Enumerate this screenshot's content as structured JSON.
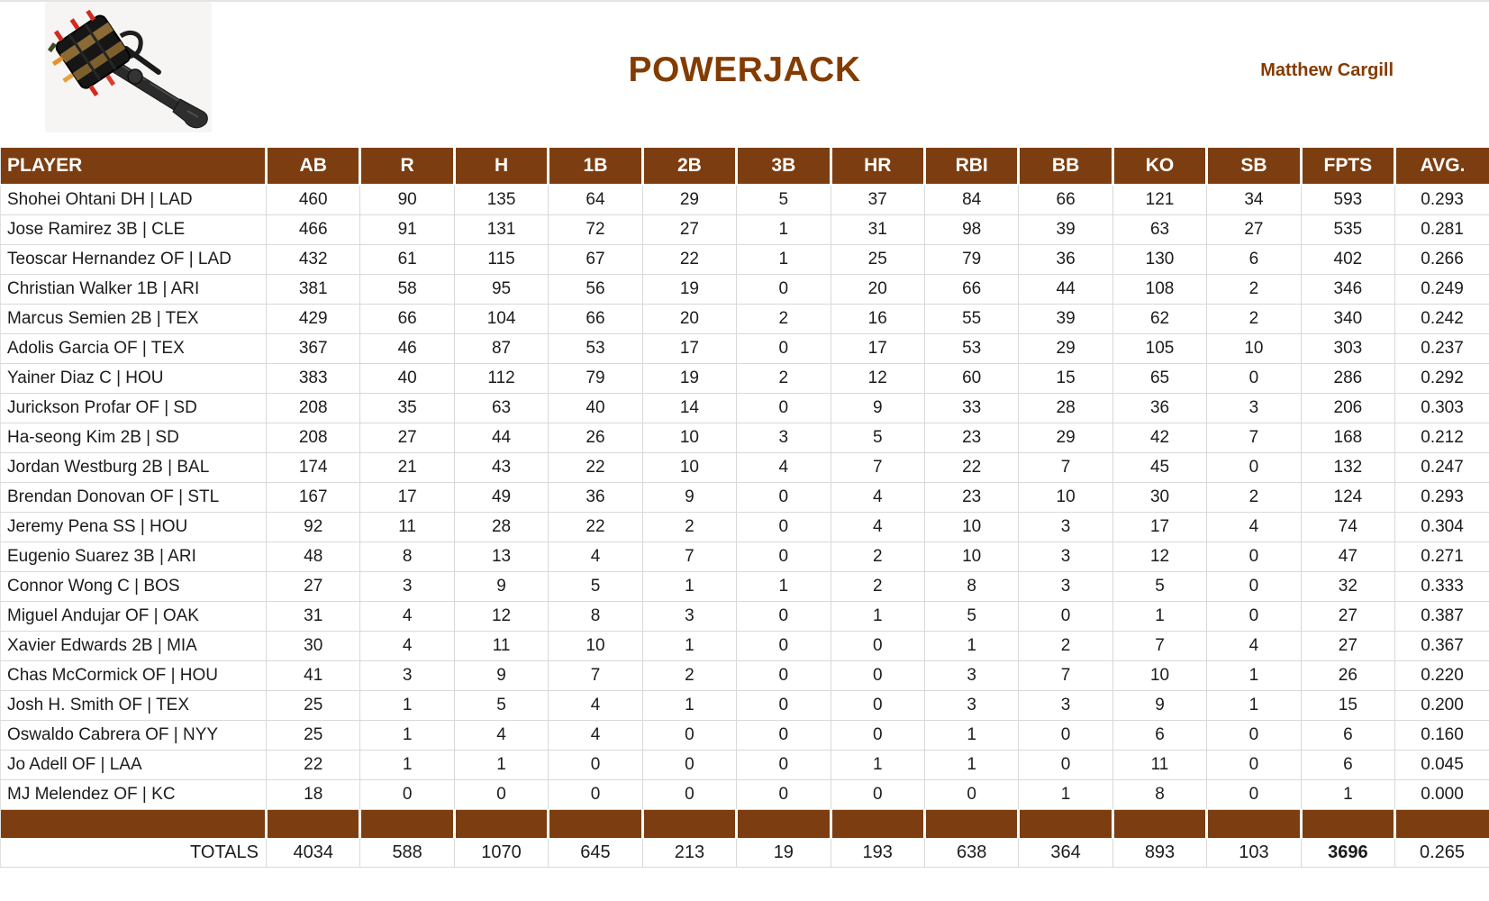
{
  "header": {
    "title": "POWERJACK",
    "owner": "Matthew Cargill",
    "logo_icon": "powerjack-hammer-icon"
  },
  "colors": {
    "accent_brown_fill": "#7C3E10",
    "title_brown_text": "#833C00",
    "gridline_gray": "#D9D9D9",
    "header_text": "#FFFFFF",
    "body_text": "#1C1C1C"
  },
  "table": {
    "columns": [
      "PLAYER",
      "AB",
      "R",
      "H",
      "1B",
      "2B",
      "3B",
      "HR",
      "RBI",
      "BB",
      "KO",
      "SB",
      "FPTS",
      "AVG."
    ],
    "rows": [
      {
        "player": "Shohei Ohtani DH | LAD",
        "stats": [
          "460",
          "90",
          "135",
          "64",
          "29",
          "5",
          "37",
          "84",
          "66",
          "121",
          "34",
          "593",
          "0.293"
        ]
      },
      {
        "player": "Jose Ramirez 3B | CLE",
        "stats": [
          "466",
          "91",
          "131",
          "72",
          "27",
          "1",
          "31",
          "98",
          "39",
          "63",
          "27",
          "535",
          "0.281"
        ]
      },
      {
        "player": "Teoscar Hernandez OF | LAD",
        "stats": [
          "432",
          "61",
          "115",
          "67",
          "22",
          "1",
          "25",
          "79",
          "36",
          "130",
          "6",
          "402",
          "0.266"
        ]
      },
      {
        "player": "Christian Walker 1B | ARI",
        "stats": [
          "381",
          "58",
          "95",
          "56",
          "19",
          "0",
          "20",
          "66",
          "44",
          "108",
          "2",
          "346",
          "0.249"
        ]
      },
      {
        "player": "Marcus Semien 2B | TEX",
        "stats": [
          "429",
          "66",
          "104",
          "66",
          "20",
          "2",
          "16",
          "55",
          "39",
          "62",
          "2",
          "340",
          "0.242"
        ]
      },
      {
        "player": "Adolis Garcia OF | TEX",
        "stats": [
          "367",
          "46",
          "87",
          "53",
          "17",
          "0",
          "17",
          "53",
          "29",
          "105",
          "10",
          "303",
          "0.237"
        ]
      },
      {
        "player": "Yainer Diaz C | HOU",
        "stats": [
          "383",
          "40",
          "112",
          "79",
          "19",
          "2",
          "12",
          "60",
          "15",
          "65",
          "0",
          "286",
          "0.292"
        ]
      },
      {
        "player": "Jurickson Profar OF | SD",
        "stats": [
          "208",
          "35",
          "63",
          "40",
          "14",
          "0",
          "9",
          "33",
          "28",
          "36",
          "3",
          "206",
          "0.303"
        ]
      },
      {
        "player": "Ha-seong Kim 2B | SD",
        "stats": [
          "208",
          "27",
          "44",
          "26",
          "10",
          "3",
          "5",
          "23",
          "29",
          "42",
          "7",
          "168",
          "0.212"
        ]
      },
      {
        "player": "Jordan Westburg 2B | BAL",
        "stats": [
          "174",
          "21",
          "43",
          "22",
          "10",
          "4",
          "7",
          "22",
          "7",
          "45",
          "0",
          "132",
          "0.247"
        ]
      },
      {
        "player": "Brendan Donovan OF | STL",
        "stats": [
          "167",
          "17",
          "49",
          "36",
          "9",
          "0",
          "4",
          "23",
          "10",
          "30",
          "2",
          "124",
          "0.293"
        ]
      },
      {
        "player": "Jeremy Pena SS | HOU",
        "stats": [
          "92",
          "11",
          "28",
          "22",
          "2",
          "0",
          "4",
          "10",
          "3",
          "17",
          "4",
          "74",
          "0.304"
        ]
      },
      {
        "player": "Eugenio Suarez 3B | ARI",
        "stats": [
          "48",
          "8",
          "13",
          "4",
          "7",
          "0",
          "2",
          "10",
          "3",
          "12",
          "0",
          "47",
          "0.271"
        ]
      },
      {
        "player": "Connor Wong C | BOS",
        "stats": [
          "27",
          "3",
          "9",
          "5",
          "1",
          "1",
          "2",
          "8",
          "3",
          "5",
          "0",
          "32",
          "0.333"
        ]
      },
      {
        "player": "Miguel Andujar OF | OAK",
        "stats": [
          "31",
          "4",
          "12",
          "8",
          "3",
          "0",
          "1",
          "5",
          "0",
          "1",
          "0",
          "27",
          "0.387"
        ]
      },
      {
        "player": "Xavier Edwards 2B | MIA",
        "stats": [
          "30",
          "4",
          "11",
          "10",
          "1",
          "0",
          "0",
          "1",
          "2",
          "7",
          "4",
          "27",
          "0.367"
        ]
      },
      {
        "player": "Chas McCormick OF | HOU",
        "stats": [
          "41",
          "3",
          "9",
          "7",
          "2",
          "0",
          "0",
          "3",
          "7",
          "10",
          "1",
          "26",
          "0.220"
        ]
      },
      {
        "player": "Josh H. Smith OF | TEX",
        "stats": [
          "25",
          "1",
          "5",
          "4",
          "1",
          "0",
          "0",
          "3",
          "3",
          "9",
          "1",
          "15",
          "0.200"
        ]
      },
      {
        "player": "Oswaldo Cabrera OF | NYY",
        "stats": [
          "25",
          "1",
          "4",
          "4",
          "0",
          "0",
          "0",
          "1",
          "0",
          "6",
          "0",
          "6",
          "0.160"
        ]
      },
      {
        "player": "Jo Adell OF | LAA",
        "stats": [
          "22",
          "1",
          "1",
          "0",
          "0",
          "0",
          "1",
          "1",
          "0",
          "11",
          "0",
          "6",
          "0.045"
        ]
      },
      {
        "player": "MJ Melendez OF | KC",
        "stats": [
          "18",
          "0",
          "0",
          "0",
          "0",
          "0",
          "0",
          "0",
          "1",
          "8",
          "0",
          "1",
          "0.000"
        ]
      }
    ],
    "totals_label": "TOTALS",
    "totals": [
      "4034",
      "588",
      "1070",
      "645",
      "213",
      "19",
      "193",
      "638",
      "364",
      "893",
      "103",
      "3696",
      "0.265"
    ]
  }
}
